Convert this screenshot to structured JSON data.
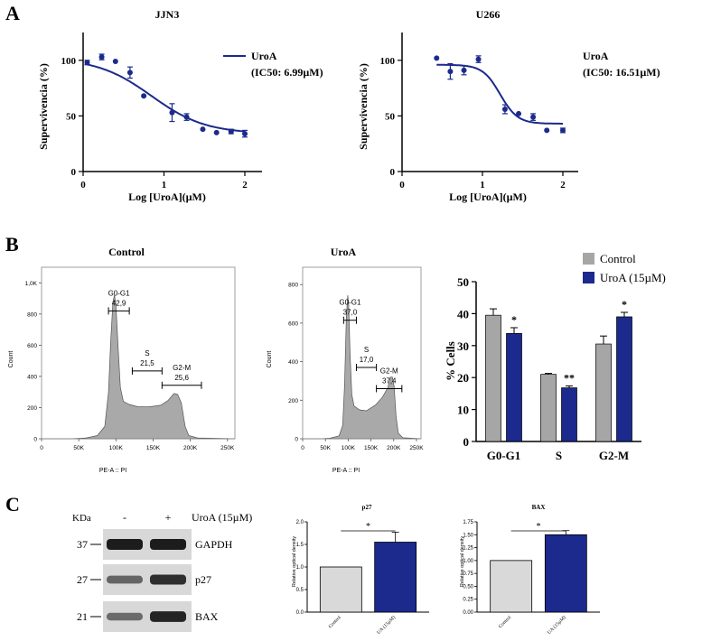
{
  "colors": {
    "navy": "#1b2a8c",
    "gray": "#a6a6a6",
    "light": "#d9d9d9",
    "black": "#000000",
    "hist": "#a9a9a9",
    "blot": "#1c1c1c"
  },
  "panels": {
    "a": "A",
    "b": "B",
    "c": "C"
  },
  "chart_data": [
    {
      "id": "jjn3",
      "type": "line",
      "title": "JJN3",
      "xlabel": "Log [UroA](µM)",
      "ylabel": "Supervivencia (%)",
      "xlim": [
        0,
        2.2
      ],
      "ylim": [
        0,
        125
      ],
      "xticks": [
        "0",
        "1",
        "2"
      ],
      "yticks": [
        "0",
        "50",
        "100"
      ],
      "legend": {
        "label": "UroA",
        "ic50": "(IC50: 6.99µM)",
        "placement": "top-right"
      },
      "curve": {
        "bottom": 34,
        "top": 102,
        "logIC50": 0.845,
        "hill": -1.3
      },
      "points": [
        {
          "x": 0.05,
          "y": 98,
          "err": 2
        },
        {
          "x": 0.23,
          "y": 103,
          "err": 2.5
        },
        {
          "x": 0.4,
          "y": 99,
          "err": 0
        },
        {
          "x": 0.58,
          "y": 89,
          "err": 5
        },
        {
          "x": 0.75,
          "y": 68,
          "err": 0
        },
        {
          "x": 1.1,
          "y": 53,
          "err": 8
        },
        {
          "x": 1.28,
          "y": 49,
          "err": 3
        },
        {
          "x": 1.48,
          "y": 38,
          "err": 0
        },
        {
          "x": 1.65,
          "y": 35,
          "err": 0
        },
        {
          "x": 1.83,
          "y": 36,
          "err": 2
        },
        {
          "x": 2.0,
          "y": 34,
          "err": 3
        }
      ]
    },
    {
      "id": "u266",
      "type": "line",
      "title": "U266",
      "xlabel": "Log [UroA](µM)",
      "ylabel": "Supervivencia (%)",
      "xlim": [
        0,
        2.2
      ],
      "ylim": [
        0,
        125
      ],
      "xticks": [
        "0",
        "1",
        "2"
      ],
      "yticks": [
        "0",
        "50",
        "100"
      ],
      "legend": {
        "label": "UroA",
        "ic50": "(IC50: 16.51µM)",
        "placement": "top-right"
      },
      "curve": {
        "bottom": 43,
        "top": 96,
        "logIC50": 1.22,
        "hill": -4
      },
      "points": [
        {
          "x": 0.43,
          "y": 102,
          "err": 0
        },
        {
          "x": 0.6,
          "y": 90,
          "err": 7
        },
        {
          "x": 0.77,
          "y": 91,
          "err": 4
        },
        {
          "x": 0.95,
          "y": 101,
          "err": 3
        },
        {
          "x": 1.28,
          "y": 56,
          "err": 4
        },
        {
          "x": 1.45,
          "y": 52,
          "err": 0
        },
        {
          "x": 1.63,
          "y": 49,
          "err": 3
        },
        {
          "x": 1.8,
          "y": 37,
          "err": 0
        },
        {
          "x": 2.0,
          "y": 37,
          "err": 2
        }
      ]
    },
    {
      "id": "hist-control",
      "type": "area",
      "title": "Control",
      "xlabel": "PE-A :: PI",
      "ylabel": "Count",
      "xlim": [
        0,
        260000
      ],
      "ylim": [
        0,
        1100
      ],
      "xticks": [
        "0",
        "50K",
        "100K",
        "150K",
        "200K",
        "250K"
      ],
      "yticks": [
        "0",
        "200",
        "400",
        "600",
        "800",
        "1,0K"
      ],
      "gates": [
        {
          "name": "G0-G1",
          "value": "42,9",
          "x1": 90000,
          "x2": 118000,
          "y": 820
        },
        {
          "name": "S",
          "value": "21,5",
          "x1": 122000,
          "x2": 162000,
          "y": 435
        },
        {
          "name": "G2-M",
          "value": "25,6",
          "x1": 162000,
          "x2": 215000,
          "y": 343
        }
      ],
      "profile": [
        [
          0,
          0
        ],
        [
          40000,
          0
        ],
        [
          60000,
          5
        ],
        [
          75000,
          20
        ],
        [
          85000,
          80
        ],
        [
          90000,
          300
        ],
        [
          93000,
          620
        ],
        [
          96000,
          880
        ],
        [
          98000,
          920
        ],
        [
          100000,
          860
        ],
        [
          103000,
          580
        ],
        [
          106000,
          330
        ],
        [
          110000,
          240
        ],
        [
          118000,
          220
        ],
        [
          130000,
          205
        ],
        [
          145000,
          205
        ],
        [
          160000,
          215
        ],
        [
          170000,
          245
        ],
        [
          178000,
          290
        ],
        [
          183000,
          285
        ],
        [
          188000,
          230
        ],
        [
          193000,
          80
        ],
        [
          198000,
          20
        ],
        [
          210000,
          5
        ],
        [
          260000,
          0
        ]
      ]
    },
    {
      "id": "hist-uroa",
      "type": "area",
      "title": "UroA",
      "xlabel": "PE-A :: PI",
      "ylabel": "Count",
      "xlim": [
        0,
        260000
      ],
      "ylim": [
        0,
        890
      ],
      "xticks": [
        "0",
        "50K",
        "100K",
        "150K",
        "200K",
        "250K"
      ],
      "yticks": [
        "0",
        "200",
        "400",
        "600",
        "800"
      ],
      "gates": [
        {
          "name": "G0-G1",
          "value": "37,0",
          "x1": 90000,
          "x2": 118000,
          "y": 615
        },
        {
          "name": "S",
          "value": "17,0",
          "x1": 118000,
          "x2": 162000,
          "y": 370
        },
        {
          "name": "G2-M",
          "value": "37,4",
          "x1": 162000,
          "x2": 218000,
          "y": 260
        }
      ],
      "profile": [
        [
          0,
          0
        ],
        [
          40000,
          0
        ],
        [
          60000,
          3
        ],
        [
          80000,
          15
        ],
        [
          88000,
          70
        ],
        [
          92000,
          280
        ],
        [
          96000,
          640
        ],
        [
          99000,
          745
        ],
        [
          101000,
          700
        ],
        [
          104000,
          450
        ],
        [
          108000,
          230
        ],
        [
          113000,
          170
        ],
        [
          125000,
          150
        ],
        [
          140000,
          145
        ],
        [
          160000,
          175
        ],
        [
          175000,
          215
        ],
        [
          187000,
          265
        ],
        [
          193000,
          320
        ],
        [
          197000,
          320
        ],
        [
          201000,
          270
        ],
        [
          205000,
          120
        ],
        [
          210000,
          30
        ],
        [
          220000,
          5
        ],
        [
          260000,
          0
        ]
      ]
    },
    {
      "id": "cellcycle-bars",
      "type": "bar",
      "title": "",
      "xlabel": "",
      "ylabel": "% Cells",
      "ylim": [
        0,
        50
      ],
      "yticks": [
        "0",
        "10",
        "20",
        "30",
        "40",
        "50"
      ],
      "categories": [
        "G0-G1",
        "S",
        "G2-M"
      ],
      "series": [
        {
          "name": "Control",
          "color": "#a6a6a6",
          "values": [
            39.5,
            21,
            30.5
          ],
          "errors": [
            2,
            0.3,
            2.5
          ]
        },
        {
          "name": "UroA (15µM)",
          "color": "#1b2a8c",
          "values": [
            33.8,
            16.8,
            39
          ],
          "errors": [
            1.8,
            0.6,
            1.4
          ]
        }
      ],
      "annotations": [
        "*",
        "**",
        "*"
      ],
      "legend": "top-right"
    },
    {
      "id": "p27-bars",
      "type": "bar",
      "title": "p27",
      "ylabel": "Relative optical density",
      "ylim": [
        0,
        2.0
      ],
      "yticks": [
        "0.0",
        "0.5",
        "1.0",
        "1.5",
        "2.0"
      ],
      "categories": [
        "Control",
        "UA (15µM)"
      ],
      "values": [
        1.0,
        1.55
      ],
      "errors": [
        0,
        0.22
      ],
      "colors": [
        "#d9d9d9",
        "#1b2a8c"
      ],
      "significance": "*"
    },
    {
      "id": "bax-bars",
      "type": "bar",
      "title": "BAX",
      "ylabel": "Relative optical density",
      "ylim": [
        0,
        1.75
      ],
      "yticks": [
        "0.00",
        "0.25",
        "0.50",
        "0.75",
        "1.00",
        "1.25",
        "1.50",
        "1.75"
      ],
      "categories": [
        "Control",
        "UA (15µM)"
      ],
      "values": [
        1.0,
        1.5
      ],
      "errors": [
        0,
        0.08
      ],
      "colors": [
        "#d9d9d9",
        "#1b2a8c"
      ],
      "significance": "*"
    }
  ],
  "blot": {
    "kda_label": "KDa",
    "minus": "-",
    "plus": "+",
    "treatment": "UroA (15µM)",
    "rows": [
      {
        "kda": "37",
        "name": "GAPDH",
        "ctrl": 1.0,
        "treat": 1.0
      },
      {
        "kda": "27",
        "name": "p27",
        "ctrl": 0.45,
        "treat": 0.85
      },
      {
        "kda": "21",
        "name": "BAX",
        "ctrl": 0.4,
        "treat": 0.95
      }
    ]
  }
}
